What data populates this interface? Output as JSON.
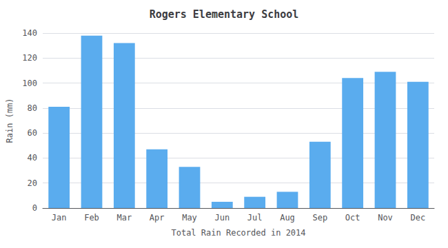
{
  "chart_data": {
    "type": "bar",
    "title": "Rogers Elementary School",
    "xlabel": "Total Rain Recorded in 2014",
    "ylabel": "Rain (mm)",
    "categories": [
      "Jan",
      "Feb",
      "Mar",
      "Apr",
      "May",
      "Jun",
      "Jul",
      "Aug",
      "Sep",
      "Oct",
      "Nov",
      "Dec"
    ],
    "values": [
      81,
      138,
      132,
      47,
      33,
      5,
      9,
      13,
      53,
      104,
      109,
      101
    ],
    "color": "#5aacee",
    "ylim": [
      0,
      140
    ],
    "yticks": [
      0,
      20,
      40,
      60,
      80,
      100,
      120,
      140
    ],
    "grid": true
  }
}
